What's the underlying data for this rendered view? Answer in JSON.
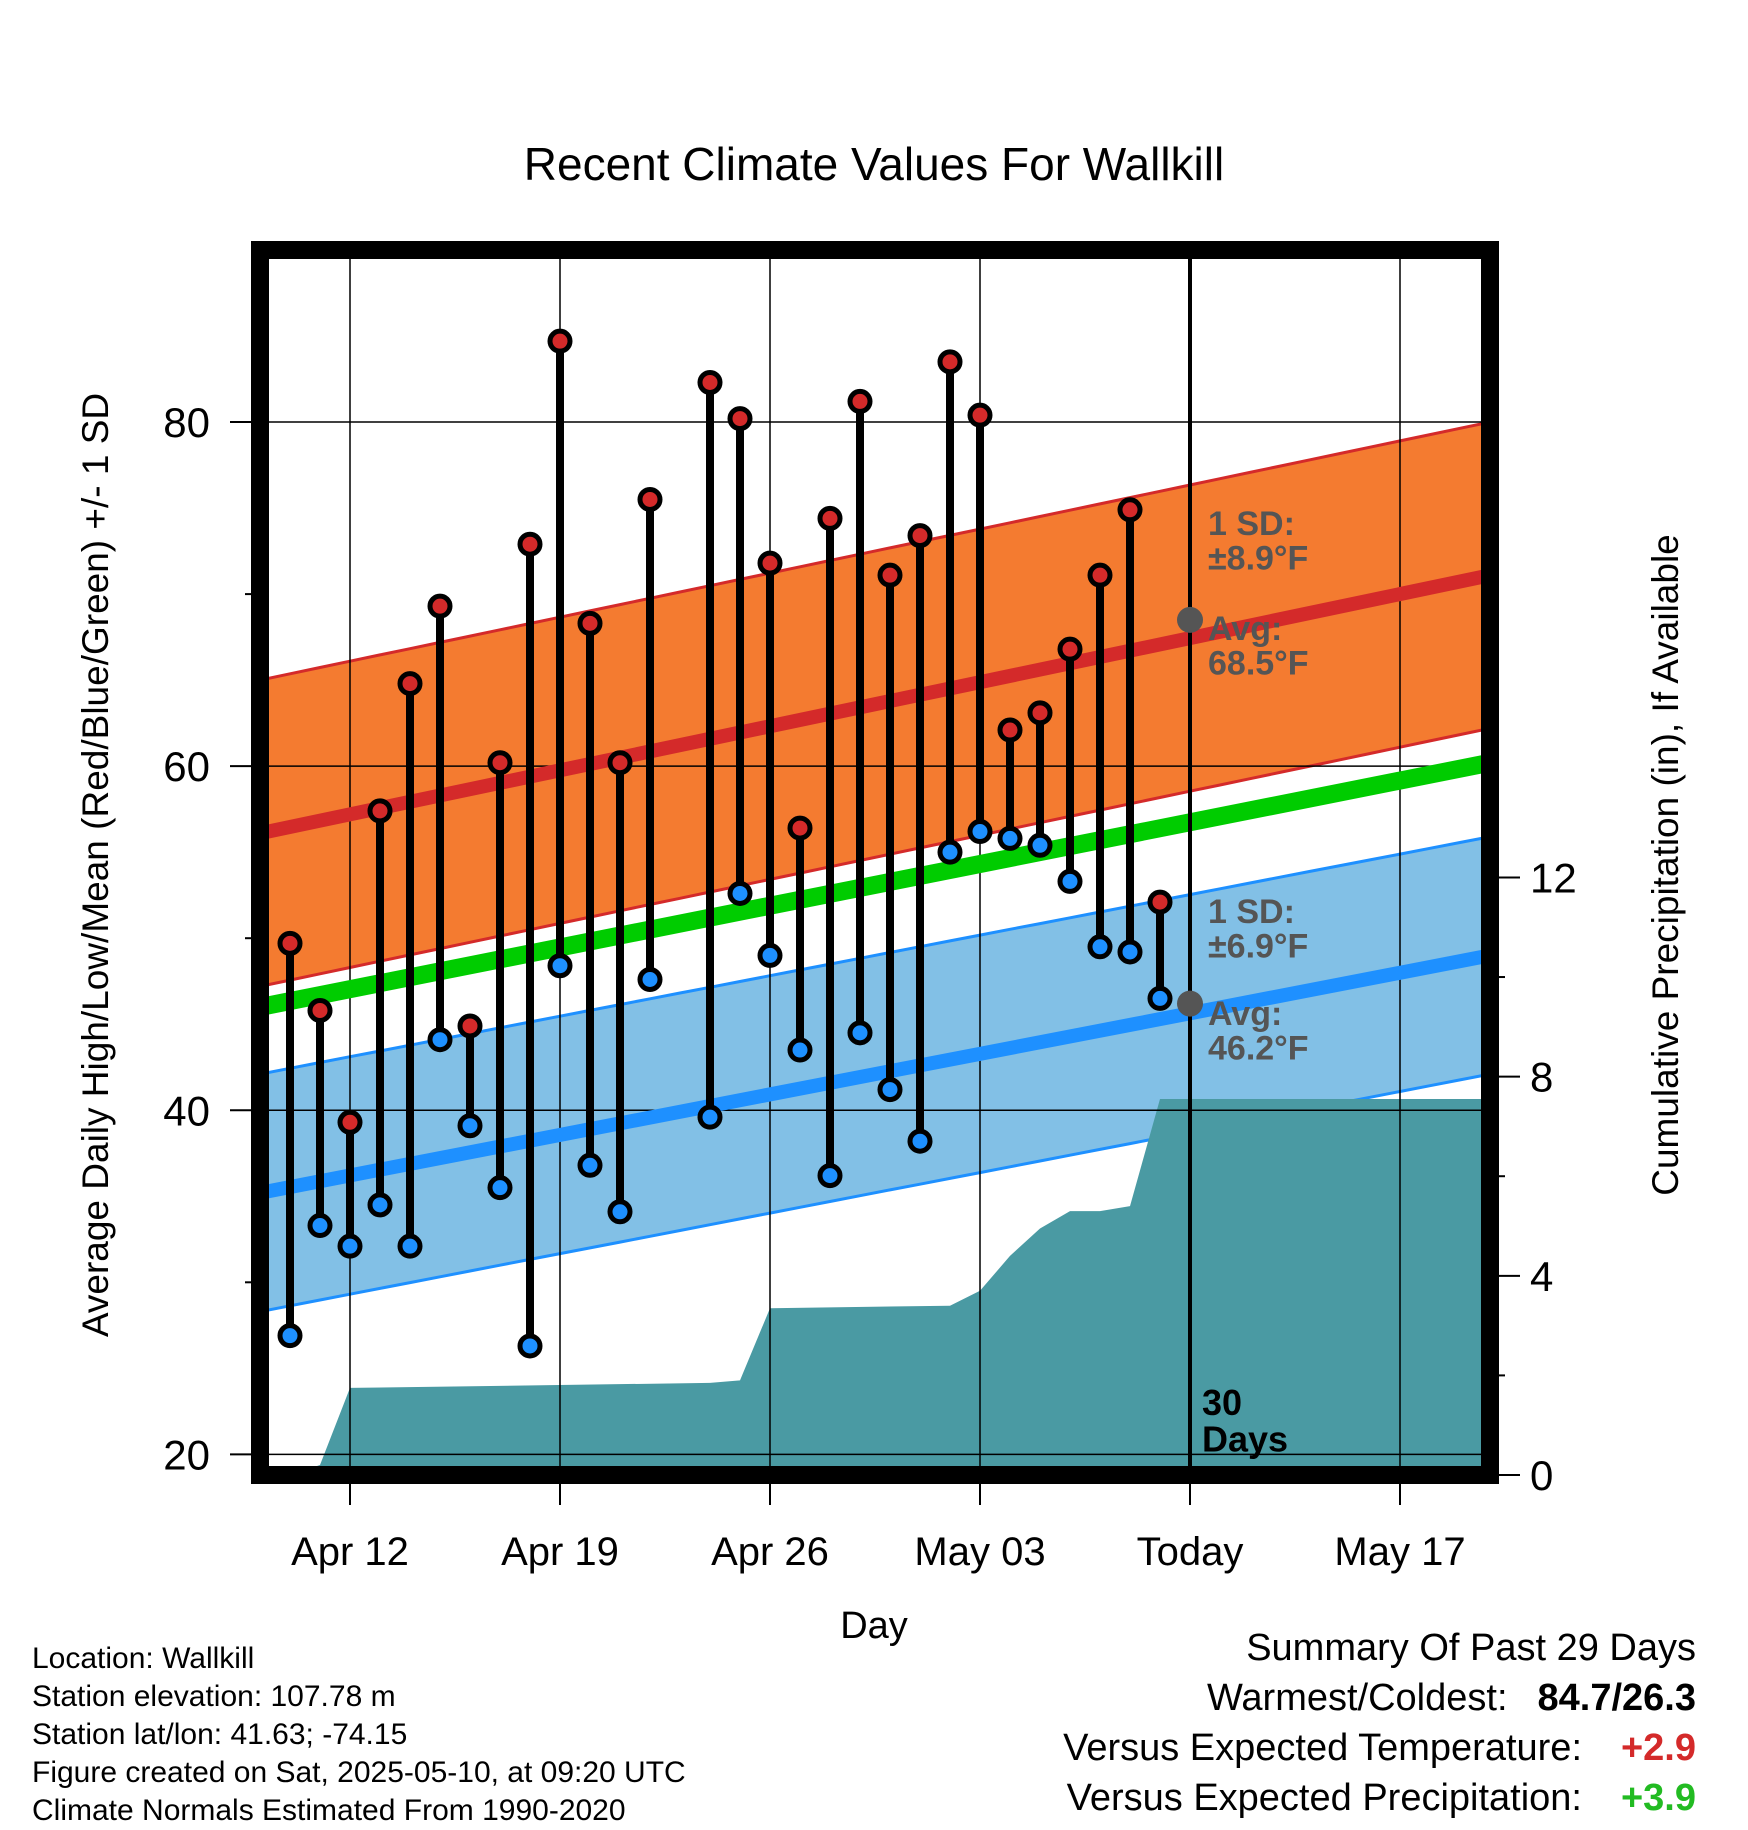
{
  "chart_data": {
    "type": "line",
    "title": "Recent Climate Values For Wallkill",
    "xlabel": "Day",
    "ylabel": "Average Daily High/Low/Mean (Red/Blue/Green) +/- 1 SD",
    "y2label": "Cumulative Precipitation (in), If Available",
    "x_tick_labels": [
      "Apr 12",
      "Apr 19",
      "Apr 26",
      "May 03",
      "Today",
      "May 17"
    ],
    "y_ticks": [
      20,
      40,
      60,
      80
    ],
    "y2_ticks": [
      0,
      4,
      8,
      12
    ],
    "ylim": [
      18.8,
      90
    ],
    "y2lim": [
      0,
      24.6
    ],
    "x_range_days": [
      "2025-04-09",
      "2025-05-20"
    ],
    "today": "2025-05-10",
    "grid": true,
    "days": [
      "2025-04-10",
      "2025-04-11",
      "2025-04-12",
      "2025-04-13",
      "2025-04-14",
      "2025-04-15",
      "2025-04-16",
      "2025-04-17",
      "2025-04-18",
      "2025-04-19",
      "2025-04-20",
      "2025-04-21",
      "2025-04-22",
      "2025-04-24",
      "2025-04-25",
      "2025-04-26",
      "2025-04-27",
      "2025-04-28",
      "2025-04-29",
      "2025-04-30",
      "2025-05-01",
      "2025-05-02",
      "2025-05-03",
      "2025-05-04",
      "2025-05-05",
      "2025-05-06",
      "2025-05-07",
      "2025-05-08",
      "2025-05-09"
    ],
    "highs": [
      49.7,
      45.8,
      39.3,
      57.4,
      64.8,
      69.3,
      44.9,
      60.2,
      72.9,
      84.7,
      68.3,
      60.2,
      75.5,
      82.3,
      80.2,
      71.8,
      56.4,
      74.4,
      81.2,
      71.1,
      73.4,
      83.5,
      80.4,
      62.1,
      63.1,
      66.8,
      71.1,
      74.9,
      52.1
    ],
    "lows": [
      26.9,
      33.3,
      32.1,
      34.5,
      32.1,
      44.1,
      39.1,
      35.5,
      26.3,
      48.4,
      36.8,
      34.1,
      47.6,
      39.6,
      52.6,
      49.0,
      43.5,
      36.2,
      44.5,
      41.2,
      38.2,
      55.0,
      56.2,
      55.8,
      55.4,
      53.3,
      49.5,
      49.2,
      46.5
    ],
    "normals": {
      "high_mean": [
        56.1,
        71.1
      ],
      "high_sd": 8.9,
      "low_mean": [
        35.2,
        49.0
      ],
      "low_sd": 6.9,
      "mean": [
        46.0,
        60.2
      ]
    },
    "precip_cumulative": [
      {
        "day": "2025-04-10",
        "value": 0.0
      },
      {
        "day": "2025-04-11",
        "value": 0.2
      },
      {
        "day": "2025-04-12",
        "value": 1.75
      },
      {
        "day": "2025-04-24",
        "value": 1.85
      },
      {
        "day": "2025-04-25",
        "value": 1.9
      },
      {
        "day": "2025-04-26",
        "value": 3.35
      },
      {
        "day": "2025-05-02",
        "value": 3.4
      },
      {
        "day": "2025-05-03",
        "value": 3.7
      },
      {
        "day": "2025-05-04",
        "value": 4.4
      },
      {
        "day": "2025-05-05",
        "value": 4.95
      },
      {
        "day": "2025-05-06",
        "value": 5.3
      },
      {
        "day": "2025-05-07",
        "value": 5.3
      },
      {
        "day": "2025-05-08",
        "value": 5.4
      },
      {
        "day": "2025-05-09",
        "value": 7.55
      },
      {
        "day": "2025-05-20",
        "value": 7.55
      }
    ],
    "annotations": {
      "high_sd_label": [
        "1 SD:",
        "±8.9°F"
      ],
      "high_avg_label": [
        "Avg:",
        "68.5°F"
      ],
      "high_avg_today": 68.5,
      "low_sd_label": [
        "1 SD:",
        "±6.9°F"
      ],
      "low_avg_label": [
        "Avg:",
        "46.2°F"
      ],
      "low_avg_today": 46.2,
      "days_label": [
        "30",
        "Days"
      ]
    },
    "colors": {
      "high_band": "#f47b30",
      "high_line": "#d42a2a",
      "high_point": "#d42a2a",
      "low_band": "#82c0e6",
      "low_line": "#1e90ff",
      "low_point": "#1e90ff",
      "mean_line": "#00cc00",
      "precip": "#4a9aa3",
      "annotation": "#555555"
    }
  },
  "info": {
    "location": "Location: Wallkill",
    "elevation": "Station elevation: 107.78 m",
    "latlon": "Station lat/lon: 41.63; -74.15",
    "created": "Figure created on Sat, 2025-05-10, at 09:20 UTC",
    "normals": "Climate Normals Estimated From 1990-2020"
  },
  "summary": {
    "title": "Summary Of Past 29 Days",
    "warm_cold_label": "Warmest/Coldest:",
    "warm_cold_value": "84.7/26.3",
    "temp_label": "Versus Expected Temperature:",
    "temp_value": "+2.9",
    "temp_color": "#d42a2a",
    "precip_label": "Versus Expected Precipitation:",
    "precip_value": "+3.9",
    "precip_color": "#22bb22"
  }
}
